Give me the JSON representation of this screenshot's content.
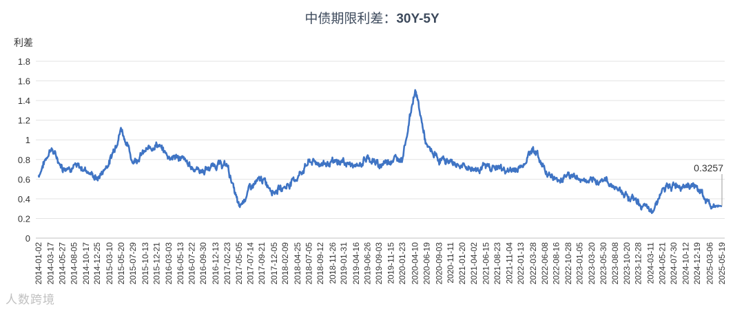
{
  "chart_data": {
    "type": "line",
    "title_cn": "中债期限利差：",
    "title_en": "30Y-5Y",
    "ylabel": "利差",
    "ylim": [
      0,
      1.8
    ],
    "yticks": [
      "0",
      "0.2",
      "0.4",
      "0.6",
      "0.8",
      "1",
      "1.2",
      "1.4",
      "1.6",
      "1.8"
    ],
    "grid": true,
    "line_color": "#3f74c4",
    "end_label": "0.3257",
    "watermark": "人数跨境",
    "xticks": [
      "2014-01-02",
      "2014-03-17",
      "2014-05-27",
      "2014-08-05",
      "2014-10-17",
      "2014-12-25",
      "2015-03-10",
      "2015-05-20",
      "2015-07-29",
      "2015-10-13",
      "2015-12-21",
      "2016-03-03",
      "2016-05-13",
      "2016-07-22",
      "2016-09-30",
      "2016-12-13",
      "2017-02-23",
      "2017-05-05",
      "2017-07-14",
      "2017-09-21",
      "2017-12-05",
      "2018-02-09",
      "2018-04-25",
      "2018-07-05",
      "2018-09-12",
      "2018-11-26",
      "2019-01-31",
      "2019-04-16",
      "2019-06-26",
      "2019-09-03",
      "2019-11-15",
      "2020-01-23",
      "2020-04-10",
      "2020-06-19",
      "2020-09-03",
      "2020-11-11",
      "2021-01-20",
      "2021-04-02",
      "2021-06-15",
      "2021-08-23",
      "2021-11-04",
      "2022-01-13",
      "2022-03-28",
      "2022-06-08",
      "2022-08-16",
      "2022-10-28",
      "2023-01-05",
      "2023-03-20",
      "2023-05-30",
      "2023-08-08",
      "2023-10-20",
      "2023-12-28",
      "2024-03-11",
      "2024-05-21",
      "2024-07-30",
      "2024-10-12",
      "2024-12-19",
      "2025-03-06",
      "2025-05-19"
    ],
    "series": [
      {
        "x": [
          "2014-01-02",
          "2014-03-17",
          "2014-05-27",
          "2014-08-05",
          "2014-10-17",
          "2014-12-25",
          "2015-03-10",
          "2015-05-20",
          "2015-07-29",
          "2015-10-13",
          "2015-12-21",
          "2016-03-03",
          "2016-05-13",
          "2016-07-22",
          "2016-09-30",
          "2016-12-13",
          "2017-02-23",
          "2017-05-05",
          "2017-07-14",
          "2017-09-21",
          "2017-12-05",
          "2018-02-09",
          "2018-04-25",
          "2018-07-05",
          "2018-09-12",
          "2018-11-26",
          "2019-01-31",
          "2019-04-16",
          "2019-06-26",
          "2019-09-03",
          "2019-11-15",
          "2020-01-23",
          "2020-04-10",
          "2020-06-19",
          "2020-09-03",
          "2020-11-11",
          "2021-01-20",
          "2021-04-02",
          "2021-06-15",
          "2021-08-23",
          "2021-11-04",
          "2022-01-13",
          "2022-03-28",
          "2022-06-08",
          "2022-08-16",
          "2022-10-28",
          "2023-01-05",
          "2023-03-20",
          "2023-05-30",
          "2023-08-08",
          "2023-10-20",
          "2023-12-28",
          "2024-03-11",
          "2024-05-21",
          "2024-07-30",
          "2024-10-12",
          "2024-12-19",
          "2025-03-06",
          "2025-05-19"
        ],
        "values": [
          0.64,
          0.92,
          0.72,
          0.73,
          0.7,
          0.6,
          0.78,
          1.12,
          0.78,
          0.88,
          0.96,
          0.83,
          0.82,
          0.72,
          0.68,
          0.75,
          0.74,
          0.3,
          0.52,
          0.6,
          0.48,
          0.52,
          0.62,
          0.78,
          0.76,
          0.76,
          0.78,
          0.72,
          0.82,
          0.74,
          0.8,
          0.82,
          1.52,
          0.92,
          0.8,
          0.78,
          0.73,
          0.7,
          0.73,
          0.72,
          0.68,
          0.72,
          0.92,
          0.7,
          0.58,
          0.65,
          0.6,
          0.56,
          0.6,
          0.52,
          0.44,
          0.36,
          0.26,
          0.48,
          0.54,
          0.55,
          0.52,
          0.33,
          0.3257
        ]
      }
    ]
  }
}
